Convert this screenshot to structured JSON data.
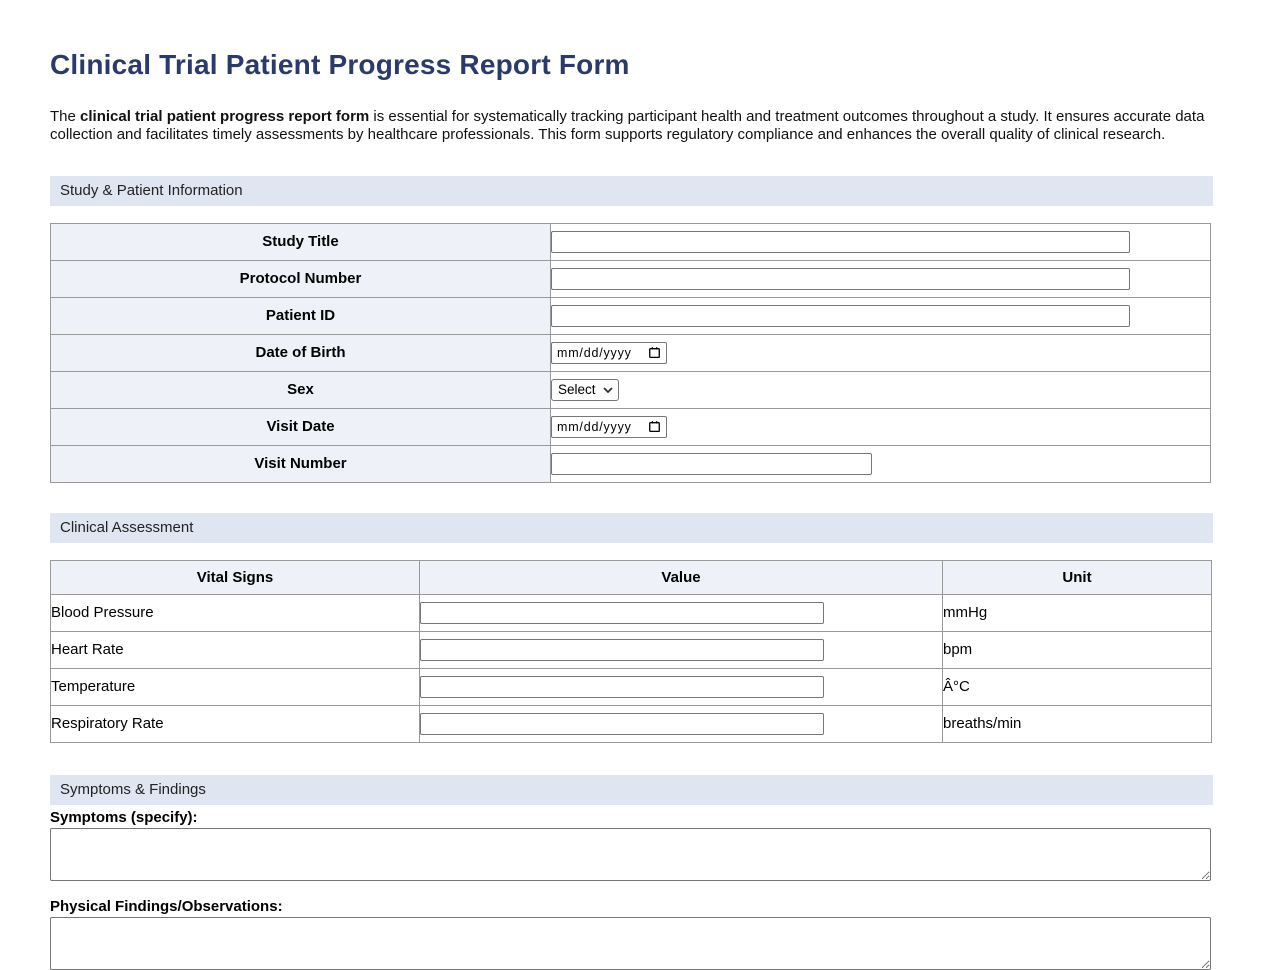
{
  "page": {
    "title": "Clinical Trial Patient Progress Report Form",
    "intro_prefix": "The ",
    "intro_bold": "clinical trial patient progress report form",
    "intro_rest": " is essential for systematically tracking participant health and treatment outcomes throughout a study. It ensures accurate data collection and facilitates timely assessments by healthcare professionals. This form supports regulatory compliance and enhances the overall quality of clinical research."
  },
  "colors": {
    "title_text": "#2b3a6b",
    "section_bar_bg": "#dfe6f2",
    "label_cell_bg": "#eef2f8",
    "table_border": "#999999",
    "control_border": "#767676"
  },
  "sections": {
    "study_patient": {
      "header": "Study & Patient Information",
      "rows": [
        {
          "label": "Study Title",
          "control": "text",
          "size": "wide",
          "name": "study-title-input"
        },
        {
          "label": "Protocol Number",
          "control": "text",
          "size": "wide",
          "name": "protocol-number-input"
        },
        {
          "label": "Patient ID",
          "control": "text",
          "size": "wide",
          "name": "patient-id-input"
        },
        {
          "label": "Date of Birth",
          "control": "date",
          "value": "mm/dd/yyyy",
          "name": "date-of-birth-input"
        },
        {
          "label": "Sex",
          "control": "select",
          "value": "Select",
          "name": "sex-select"
        },
        {
          "label": "Visit Date",
          "control": "date",
          "value": "mm/dd/yyyy",
          "name": "visit-date-input"
        },
        {
          "label": "Visit Number",
          "control": "text",
          "size": "medium",
          "name": "visit-number-input"
        }
      ]
    },
    "clinical_assessment": {
      "header": "Clinical Assessment",
      "columns": [
        "Vital Signs",
        "Value",
        "Unit"
      ],
      "rows": [
        {
          "vital": "Blood Pressure",
          "unit": "mmHg",
          "name": "blood-pressure-value-input"
        },
        {
          "vital": "Heart Rate",
          "unit": "bpm",
          "name": "heart-rate-value-input"
        },
        {
          "vital": "Temperature",
          "unit": "Â°C",
          "name": "temperature-value-input"
        },
        {
          "vital": "Respiratory Rate",
          "unit": "breaths/min",
          "name": "respiratory-rate-value-input"
        }
      ]
    },
    "symptoms_findings": {
      "header": "Symptoms & Findings",
      "symptoms_label": "Symptoms (specify):",
      "findings_label": "Physical Findings/Observations:"
    }
  }
}
